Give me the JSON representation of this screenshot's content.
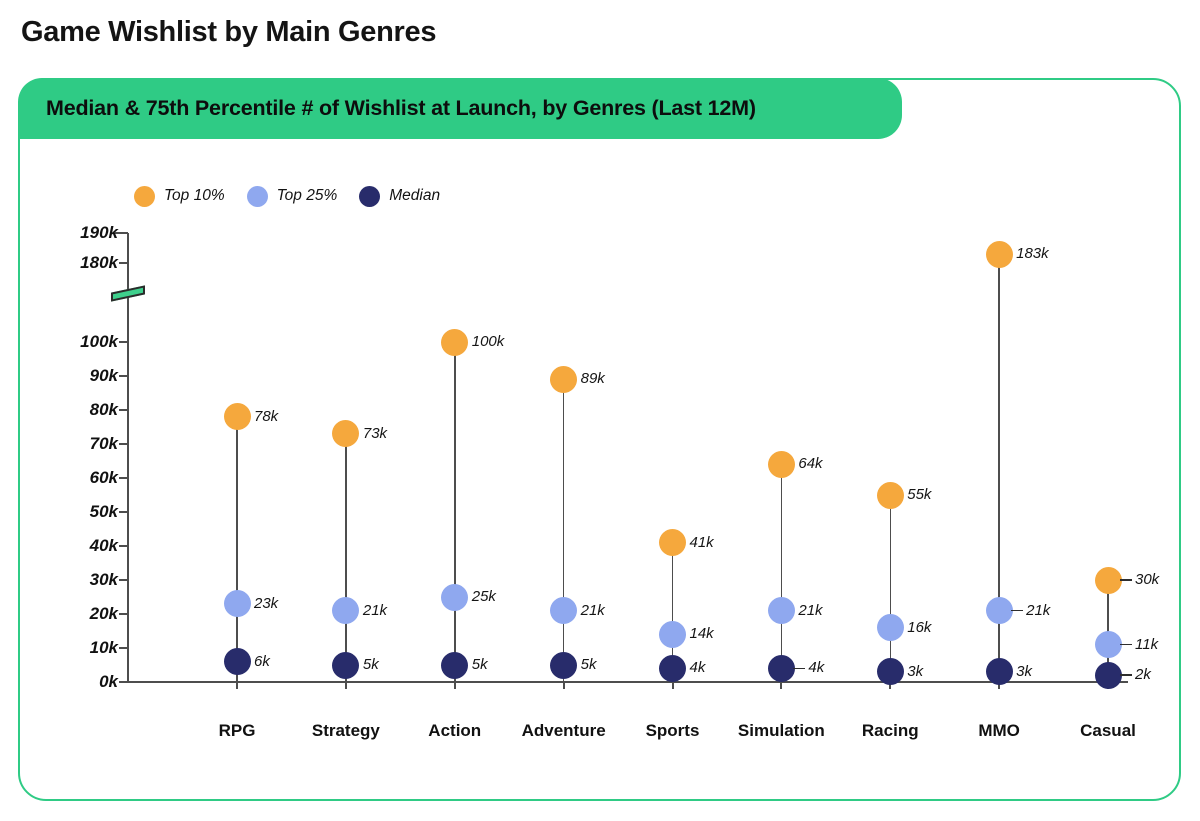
{
  "page": {
    "title": "Game Wishlist by Main Genres"
  },
  "card": {
    "banner_title": "Median & 75th Percentile # of Wishlist at Launch, by Genres (Last 12M)",
    "accent_color": "#2fcb85"
  },
  "legend": {
    "items": [
      {
        "label": "Top 10%",
        "color": "#f5a83d"
      },
      {
        "label": "Top 25%",
        "color": "#8fa8ef"
      },
      {
        "label": "Median",
        "color": "#282c6b"
      }
    ]
  },
  "chart_data": {
    "type": "scatter",
    "variant": "lollipop",
    "title": "Median & 75th Percentile # of Wishlist at Launch, by Genres (Last 12M)",
    "unit": "k (thousands of wishlists)",
    "categories": [
      "RPG",
      "Strategy",
      "Action",
      "Adventure",
      "Sports",
      "Simulation",
      "Racing",
      "MMO",
      "Casual"
    ],
    "series": [
      {
        "name": "Top 10%",
        "color": "#f5a83d",
        "values": [
          78,
          73,
          100,
          89,
          41,
          64,
          55,
          183,
          30
        ],
        "labels": [
          "78k",
          "73k",
          "100k",
          "89k",
          "41k",
          "64k",
          "55k",
          "183k",
          "30k"
        ],
        "leader": [
          false,
          false,
          false,
          false,
          false,
          false,
          false,
          false,
          true
        ]
      },
      {
        "name": "Top 25%",
        "color": "#8fa8ef",
        "values": [
          23,
          21,
          25,
          21,
          14,
          21,
          16,
          21,
          11
        ],
        "labels": [
          "23k",
          "21k",
          "25k",
          "21k",
          "14k",
          "21k",
          "16k",
          "21k",
          "11k"
        ],
        "leader": [
          false,
          false,
          false,
          false,
          false,
          false,
          false,
          true,
          true
        ]
      },
      {
        "name": "Median",
        "color": "#282c6b",
        "values": [
          6,
          5,
          5,
          5,
          4,
          4,
          3,
          3,
          2
        ],
        "labels": [
          "6k",
          "5k",
          "5k",
          "5k",
          "4k",
          "4k",
          "3k",
          "3k",
          "2k"
        ],
        "leader": [
          false,
          false,
          false,
          false,
          false,
          true,
          false,
          false,
          true
        ]
      }
    ],
    "y_axis": {
      "ticks": [
        {
          "v": 0,
          "label": "0k"
        },
        {
          "v": 10,
          "label": "10k"
        },
        {
          "v": 20,
          "label": "20k"
        },
        {
          "v": 30,
          "label": "30k"
        },
        {
          "v": 40,
          "label": "40k"
        },
        {
          "v": 50,
          "label": "50k"
        },
        {
          "v": 60,
          "label": "60k"
        },
        {
          "v": 70,
          "label": "70k"
        },
        {
          "v": 80,
          "label": "80k"
        },
        {
          "v": 90,
          "label": "90k"
        },
        {
          "v": 100,
          "label": "100k"
        },
        {
          "v": 180,
          "label": "180k"
        },
        {
          "v": 190,
          "label": "190k"
        }
      ],
      "axis_break": {
        "between": [
          100,
          180
        ]
      }
    },
    "legend_position": "top-left",
    "grid": false
  }
}
